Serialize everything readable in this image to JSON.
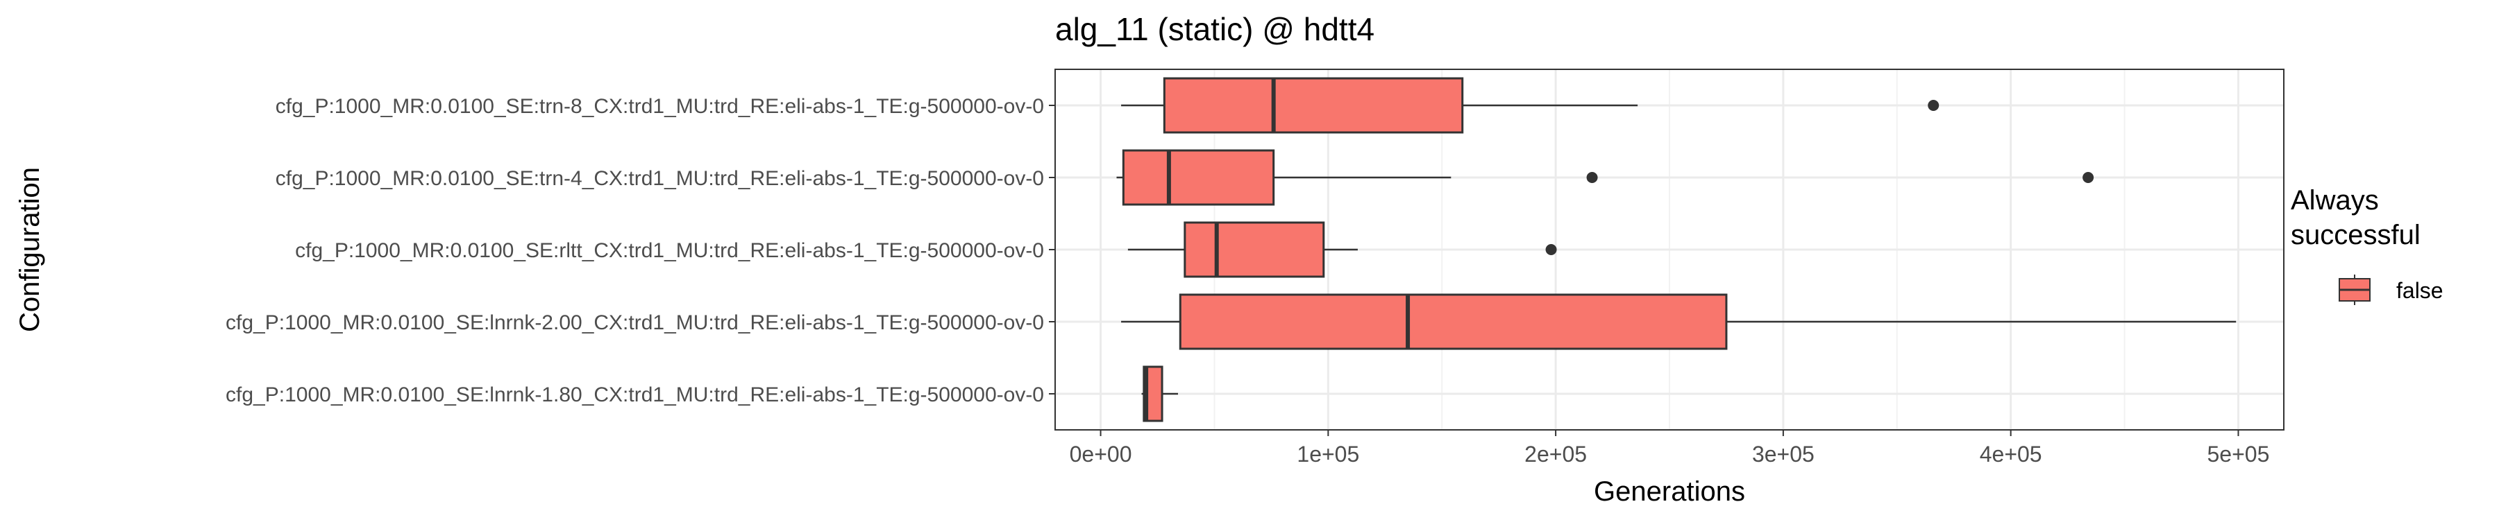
{
  "chart_data": {
    "type": "boxplot",
    "orientation": "horizontal",
    "title": "alg_11 (static) @ hdtt4",
    "xlabel": "Generations",
    "ylabel": "Configuration",
    "xlim": [
      -20000,
      520000
    ],
    "x_ticks": [
      {
        "value": 0,
        "label": "0e+00"
      },
      {
        "value": 100000,
        "label": "1e+05"
      },
      {
        "value": 200000,
        "label": "2e+05"
      },
      {
        "value": 300000,
        "label": "3e+05"
      },
      {
        "value": 400000,
        "label": "4e+05"
      },
      {
        "value": 500000,
        "label": "5e+05"
      }
    ],
    "grid": true,
    "legend": {
      "title_lines": [
        "Always",
        "successful"
      ],
      "position": "right",
      "entries": [
        {
          "label": "false",
          "color": "#F8766D"
        }
      ]
    },
    "categories": [
      "cfg_P:1000_MR:0.0100_SE:trn-8_CX:trd1_MU:trd_RE:eli-abs-1_TE:g-500000-ov-0",
      "cfg_P:1000_MR:0.0100_SE:trn-4_CX:trd1_MU:trd_RE:eli-abs-1_TE:g-500000-ov-0",
      "cfg_P:1000_MR:0.0100_SE:rltt_CX:trd1_MU:trd_RE:eli-abs-1_TE:g-500000-ov-0",
      "cfg_P:1000_MR:0.0100_SE:lnrnk-2.00_CX:trd1_MU:trd_RE:eli-abs-1_TE:g-500000-ov-0",
      "cfg_P:1000_MR:0.0100_SE:lnrnk-1.80_CX:trd1_MU:trd_RE:eli-abs-1_TE:g-500000-ov-0"
    ],
    "boxes": [
      {
        "whisker_low": 9000,
        "q1": 28000,
        "median": 76000,
        "q3": 159000,
        "whisker_high": 236000,
        "outliers": [
          366000
        ]
      },
      {
        "whisker_low": 7000,
        "q1": 10000,
        "median": 30000,
        "q3": 76000,
        "whisker_high": 154000,
        "outliers": [
          216000,
          434000
        ]
      },
      {
        "whisker_low": 12000,
        "q1": 37000,
        "median": 51000,
        "q3": 98000,
        "whisker_high": 113000,
        "outliers": [
          198000
        ]
      },
      {
        "whisker_low": 9000,
        "q1": 35000,
        "median": 135000,
        "q3": 275000,
        "whisker_high": 499000,
        "outliers": []
      },
      {
        "whisker_low": 18000,
        "q1": 19000,
        "median": 20000,
        "q3": 27000,
        "whisker_high": 34000,
        "outliers": []
      }
    ],
    "fill_color": "#F8766D"
  }
}
